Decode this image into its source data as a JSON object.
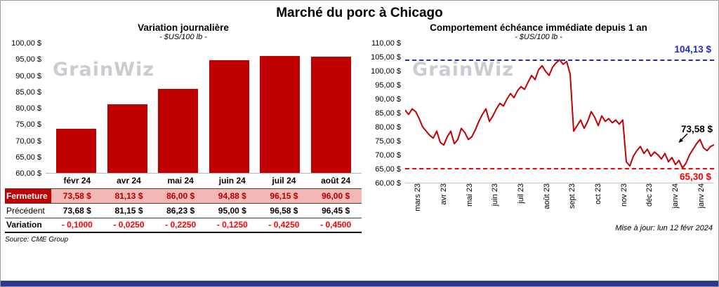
{
  "header": {
    "title": "Marché du porc à Chicago"
  },
  "watermark": "GrainWiz",
  "colors": {
    "bar": "#c00000",
    "line": "#c00000",
    "max_line": "#2228c0",
    "min_line": "#fe0000",
    "fermeture_label_bg": "#c00000",
    "fermeture_cell_bg": "#f5b6b6",
    "variation_text": "#fe0000",
    "footer_bar": "#2b3990"
  },
  "chart_data": [
    {
      "type": "bar",
      "title": "Variation  journalière",
      "subtitle": "- $US/100 lb -",
      "categories": [
        "févr 24",
        "avr 24",
        "mai 24",
        "juin 24",
        "juil 24",
        "août 24"
      ],
      "values": [
        73.58,
        81.13,
        86.0,
        94.88,
        96.15,
        96.0
      ],
      "ylim": [
        60,
        100
      ],
      "yticks": [
        "100,00 $",
        "95,00 $",
        "90,00 $",
        "85,00 $",
        "80,00 $",
        "75,00 $",
        "70,00 $",
        "65,00 $",
        "60,00 $"
      ],
      "bar_color": "#c00000",
      "grid": false,
      "legend": false
    },
    {
      "type": "line",
      "title": "Comportement  échéance immédiate depuis 1 an",
      "subtitle": "- $US/100 lb -",
      "x_labels": [
        "mars 23",
        "avr 23",
        "mai 23",
        "juin 23",
        "juil 23",
        "août 23",
        "sept 23",
        "oct 23",
        "nov 23",
        "déc 23",
        "janv 24",
        "janv 24"
      ],
      "values": [
        86.0,
        84.5,
        86.5,
        85.5,
        83.0,
        80.0,
        78.5,
        77.0,
        76.0,
        78.5,
        74.5,
        73.5,
        76.5,
        78.5,
        74.0,
        75.5,
        79.5,
        78.0,
        75.5,
        76.5,
        79.0,
        82.0,
        84.5,
        86.5,
        82.0,
        84.0,
        86.5,
        88.5,
        87.5,
        90.0,
        92.0,
        90.5,
        93.0,
        94.5,
        93.5,
        96.0,
        98.5,
        97.0,
        100.5,
        102.0,
        100.0,
        98.5,
        101.5,
        103.0,
        104.13,
        102.5,
        103.5,
        99.0,
        78.5,
        80.5,
        82.5,
        79.5,
        82.0,
        85.5,
        83.5,
        80.5,
        84.0,
        82.0,
        83.0,
        81.5,
        82.5,
        81.0,
        82.5,
        67.5,
        66.0,
        69.5,
        71.5,
        73.0,
        70.5,
        72.0,
        69.5,
        71.0,
        70.0,
        68.5,
        70.5,
        67.5,
        69.0,
        66.5,
        68.0,
        65.3,
        67.0,
        70.0,
        72.0,
        74.0,
        75.5,
        72.5,
        71.5,
        73.0,
        73.58
      ],
      "ylim": [
        60,
        110
      ],
      "yticks": [
        "110,00 $",
        "105,00 $",
        "100,00 $",
        "95,00 $",
        "90,00 $",
        "85,00 $",
        "80,00 $",
        "75,00 $",
        "70,00 $",
        "65,00 $",
        "60,00 $"
      ],
      "line_color": "#c00000",
      "grid": false,
      "legend": false,
      "annotations": {
        "max": {
          "label": "104,13 $",
          "value": 104.13,
          "color": "#2228c0"
        },
        "last": {
          "label": "73,58 $",
          "value": 73.58,
          "color": "#000000"
        },
        "min": {
          "label": "65,30 $",
          "value": 65.3,
          "color": "#fe0000"
        }
      }
    }
  ],
  "table": {
    "fermeture": {
      "label": "Fermeture",
      "values": [
        "73,58  $",
        "81,13  $",
        "86,00  $",
        "94,88  $",
        "96,15  $",
        "96,00  $"
      ]
    },
    "precedent": {
      "label": "Précédent",
      "values": [
        "73,68  $",
        "81,15  $",
        "86,23  $",
        "95,00  $",
        "96,58  $",
        "96,45  $"
      ]
    },
    "variation": {
      "label": "Variation",
      "values": [
        "- 0,1000",
        "- 0,0250",
        "- 0,2250",
        "- 0,1250",
        "- 0,4250",
        "- 0,4500"
      ]
    }
  },
  "footer": {
    "source": "Source: CME Group",
    "updated": "Mise à jour: lun 12 févr 2024"
  }
}
